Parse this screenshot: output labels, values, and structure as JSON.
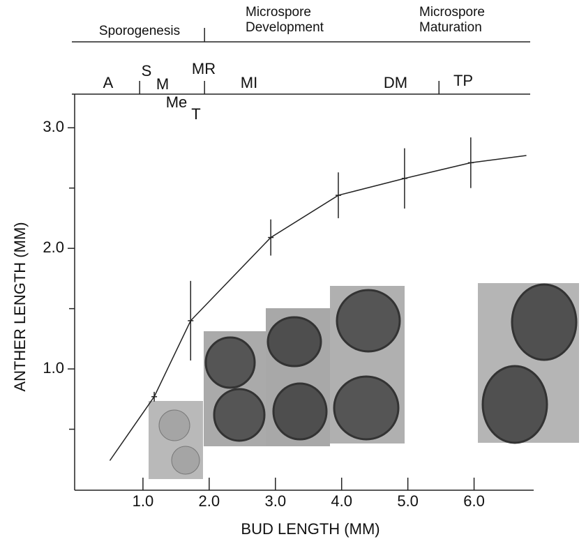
{
  "chart_data": {
    "type": "line",
    "x_label": "BUD LENGTH (MM)",
    "y_label": "ANTHER LENGTH (MM)",
    "xlim": [
      0,
      6.9
    ],
    "ylim": [
      0,
      3.25
    ],
    "xticks": [
      {
        "value": 1,
        "label": "1.0"
      },
      {
        "value": 2,
        "label": "2.0"
      },
      {
        "value": 3,
        "label": "3.0"
      },
      {
        "value": 4,
        "label": "4.0"
      },
      {
        "value": 5,
        "label": "5.0"
      },
      {
        "value": 6,
        "label": "6.0"
      }
    ],
    "yticks": [
      {
        "value": 1,
        "label": "1.0"
      },
      {
        "value": 2,
        "label": "2.0"
      },
      {
        "value": 3,
        "label": "3.0"
      }
    ],
    "y_minor_ticks": [
      0.5,
      1.5,
      2.5
    ],
    "x": [
      0.5,
      1.17,
      1.72,
      2.93,
      3.95,
      4.95,
      5.95,
      6.79
    ],
    "series": [
      {
        "color": "#222222",
        "values": [
          0.24,
          0.77,
          1.4,
          2.09,
          2.44,
          2.58,
          2.71,
          2.77
        ],
        "errors": [
          null,
          0.04,
          0.33,
          0.15,
          0.19,
          0.25,
          0.21,
          null
        ]
      }
    ],
    "phases": [
      "Sporogenesis",
      "Microspore\nDevelopment",
      "Microspore\nMaturation"
    ],
    "phase_boundaries": [
      1.93
    ],
    "stages": [
      "A",
      "S",
      "M",
      "Me",
      "T",
      "MR",
      "MI",
      "DM",
      "TP"
    ],
    "stage_boundaries": [
      0.95,
      1.93,
      5.47
    ]
  }
}
